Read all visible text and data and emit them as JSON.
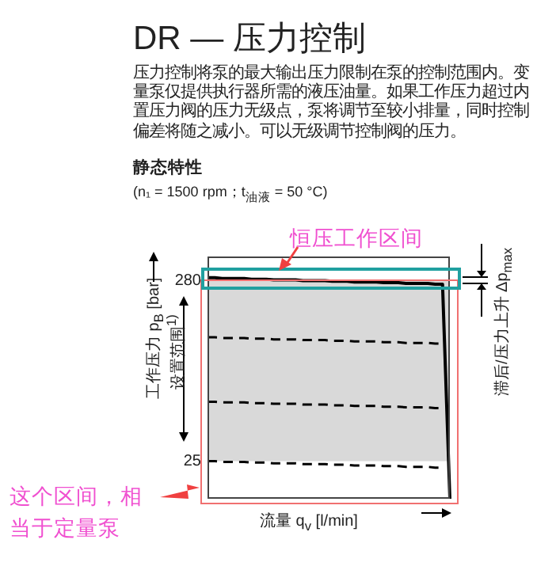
{
  "chart_data": {
    "type": "line",
    "title": "DR — 压力控制",
    "subtitle": "压力控制将泵的最大输出压力限制在泵的控制范围内。变量泵仅提供执行器所需的液压油量。如果工作压力超过内置压力阀的压力无级点，泵将调节至较小排量，同时控制偏差将随之减小。可以无级调节控制阀的压力。",
    "xlabel": "流量 q$_{v}$ [l/min]",
    "ylabel": "工作压力 p$_{B}$ [bar]",
    "annotations": [
      "静态特性",
      "(n₁ = 1500 rpm；t$_{油液}$ = 50 °C)",
      "设置范围$^{1)}$",
      "滞后/压力上升 Δp$_{max}$",
      "恒压工作区间",
      "这个区间，相当于定量泵"
    ],
    "categories": [
      null,
      null,
      null,
      null,
      null,
      null,
      null,
      null,
      null,
      null,
      null,
      null,
      null,
      null,
      null,
      null,
      null,
      null,
      null,
      null,
      null,
      null,
      null,
      null,
      null,
      null,
      null,
      null,
      null,
      null,
      null,
      null,
      null,
      null
    ],
    "ylim": [
      -28,
      314
    ],
    "yticks": [
      25,
      280
    ],
    "tick_labels": "y",
    "grid": false,
    "legend": false,
    "marker": "none",
    "bands": [
      {
        "axis": "y",
        "from": 25,
        "to": 280,
        "color": "#d9d9d9"
      }
    ],
    "series": [
      {
        "color": "#000000",
        "values": [
          284,
          284,
          283,
          283,
          283,
          283,
          282,
          282,
          282,
          281,
          281,
          281,
          281,
          280,
          280,
          280,
          280,
          279,
          279,
          279,
          278,
          278,
          278,
          278,
          277,
          277,
          277,
          276,
          276,
          276,
          276,
          275,
          275,
          -28
        ],
        "line_style": "solid"
      },
      {
        "color": "#000000",
        "values": [
          200,
          200,
          199,
          199,
          199,
          199,
          198,
          198,
          198,
          197,
          197,
          197,
          197,
          196,
          196,
          196,
          196,
          195,
          195,
          195,
          194,
          194,
          194,
          194,
          193,
          193,
          193,
          192,
          192,
          192,
          192,
          191,
          191,
          null
        ],
        "line_style": "dashed"
      },
      {
        "color": "#000000",
        "values": [
          109,
          109,
          108,
          108,
          108,
          108,
          107,
          107,
          107,
          106,
          106,
          106,
          106,
          105,
          105,
          105,
          105,
          104,
          104,
          104,
          103,
          103,
          103,
          103,
          102,
          102,
          102,
          101,
          101,
          101,
          101,
          100,
          100,
          null
        ],
        "line_style": "dashed"
      },
      {
        "color": "#000000",
        "values": [
          25,
          25,
          24,
          24,
          24,
          24,
          23,
          23,
          23,
          22,
          22,
          22,
          22,
          21,
          21,
          21,
          21,
          20,
          20,
          20,
          19,
          19,
          19,
          19,
          18,
          18,
          18,
          17,
          17,
          17,
          17,
          16,
          16,
          null
        ],
        "line_style": "dashed"
      }
    ]
  }
}
